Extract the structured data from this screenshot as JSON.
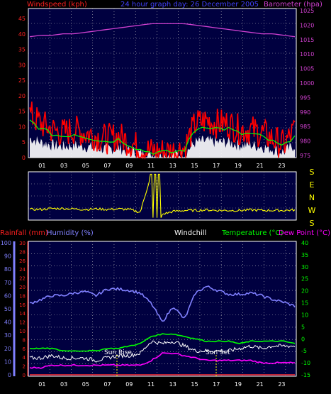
{
  "colors": {
    "background": "#000000",
    "plot_bg": "#000040",
    "grid": "#c0c0c0",
    "windspeed": "#ff0000",
    "gust_avg": "#00ff00",
    "wind_white": "#ffffff",
    "wind_green": "#a0ffa0",
    "barometer": "#d040d0",
    "winddir": "#ffff00",
    "rainfall": "#ff3030",
    "humidity": "#8080ff",
    "windchill": "#ffffff",
    "temperature": "#00ff00",
    "dewpoint": "#ff00ff"
  },
  "top_chart": {
    "title": "24 hour graph day: 26 December 2005",
    "left_label": "Windspeed (kph)",
    "right_label": "Barometer (hpa)",
    "left_ticks": [
      "0",
      "5",
      "10",
      "15",
      "20",
      "25",
      "30",
      "35",
      "40",
      "45"
    ],
    "right_ticks": [
      "975",
      "980",
      "985",
      "990",
      "995",
      "1000",
      "1005",
      "1010",
      "1015",
      "1020",
      "1025"
    ]
  },
  "dir_chart": {
    "compass": [
      "S",
      "E",
      "N",
      "W",
      "S"
    ]
  },
  "bottom_chart": {
    "rain_label": "Rainfall (mm)",
    "humidity_label": "Humidity (%)",
    "windchill_label": "Windchill",
    "temp_label": "Temperature (°C)",
    "dew_label": "Dew Point (°C)",
    "rain_ticks": [
      "0",
      "2",
      "4",
      "6",
      "8",
      "10",
      "12",
      "14",
      "16",
      "18",
      "20",
      "22",
      "24",
      "26",
      "28",
      "30"
    ],
    "humidity_ticks": [
      "0",
      "10",
      "20",
      "30",
      "40",
      "50",
      "60",
      "70",
      "80",
      "90",
      "100"
    ],
    "temp_ticks": [
      "-15",
      "-10",
      "-5",
      "0",
      "5",
      "10",
      "15",
      "20",
      "25",
      "30",
      "35",
      "40"
    ],
    "sunrise_label": "Sun Rise",
    "sunset_label": "Sun Set"
  },
  "x_ticks": [
    "01",
    "03",
    "05",
    "07",
    "09",
    "11",
    "13",
    "15",
    "17",
    "19",
    "21",
    "23"
  ],
  "chart_data": [
    {
      "type": "line",
      "title": "24 hour graph day: 26 December 2005",
      "xlabel": "",
      "ylabel": "Windspeed (kph)",
      "ylim": [
        0,
        45
      ],
      "y2label": "Barometer (hpa)",
      "y2lim": [
        975,
        1025
      ],
      "x": [
        0,
        1,
        2,
        3,
        4,
        5,
        6,
        7,
        8,
        9,
        10,
        11,
        12,
        13,
        14,
        15,
        16,
        17,
        18,
        19,
        20,
        21,
        22,
        23,
        24
      ],
      "series": [
        {
          "name": "Windspeed (kph)",
          "values": [
            14,
            11,
            9,
            8,
            9,
            8,
            7,
            6,
            7,
            5,
            3,
            2,
            2,
            2,
            3,
            11,
            12,
            11,
            11,
            9,
            9,
            8,
            6,
            4,
            9
          ]
        },
        {
          "name": "Barometer (hpa)",
          "values": [
            1016,
            1016.5,
            1016.5,
            1017,
            1017,
            1017.5,
            1018,
            1018.5,
            1019,
            1019.5,
            1020,
            1020.5,
            1020.5,
            1020.5,
            1020.5,
            1020,
            1019.5,
            1019,
            1018.5,
            1018,
            1017.5,
            1017,
            1017,
            1016.5,
            1016
          ]
        }
      ],
      "legend": "none",
      "grid": true
    },
    {
      "type": "line",
      "xlabel": "",
      "ylabel": "",
      "ycategories": [
        "S",
        "E",
        "N",
        "W",
        "S"
      ],
      "x": [
        0,
        1,
        2,
        3,
        4,
        5,
        6,
        7,
        8,
        9,
        10,
        11,
        12,
        13,
        14,
        15,
        16,
        17,
        18,
        19,
        20,
        21,
        22,
        23,
        24
      ],
      "series": [
        {
          "values": [
            0.22,
            0.22,
            0.24,
            0.24,
            0.23,
            0.22,
            0.23,
            0.22,
            0.23,
            0.22,
            0.16,
            0.95,
            0.12,
            0.18,
            0.2,
            0.2,
            0.21,
            0.2,
            0.2,
            0.2,
            0.21,
            0.2,
            0.2,
            0.2,
            0.21
          ]
        }
      ],
      "grid": true
    },
    {
      "type": "line",
      "xlabel": "",
      "ylabel": "",
      "ylim": [
        -15,
        40
      ],
      "y2label": "Humidity (%)",
      "y2lim": [
        0,
        100
      ],
      "y3label": "Rainfall (mm)",
      "y3lim": [
        0,
        30
      ],
      "x": [
        0,
        1,
        2,
        3,
        4,
        5,
        6,
        7,
        8,
        9,
        10,
        11,
        12,
        13,
        14,
        15,
        16,
        17,
        18,
        19,
        20,
        21,
        22,
        23,
        24
      ],
      "series": [
        {
          "name": "Humidity (%)",
          "values": [
            54,
            57,
            60,
            60,
            62,
            63,
            60,
            65,
            65,
            64,
            62,
            54,
            40,
            52,
            42,
            62,
            67,
            64,
            61,
            61,
            62,
            60,
            57,
            55,
            52
          ]
        },
        {
          "name": "Windchill",
          "values": [
            -8,
            -8,
            -7,
            -8,
            -8,
            -8,
            -9,
            -8,
            -7,
            -7,
            -6,
            -1,
            -2,
            -1,
            -3,
            -5,
            -5,
            -5,
            -5,
            -4,
            -3,
            -4,
            -3,
            -3,
            -3
          ]
        },
        {
          "name": "Temperature (°C)",
          "values": [
            -4,
            -4,
            -4,
            -5,
            -5,
            -5,
            -5,
            -4,
            -4,
            -3,
            -2,
            1,
            2,
            2,
            1,
            0,
            -1,
            -1,
            -1,
            -2,
            -1,
            -1,
            -1,
            -1,
            -2
          ]
        },
        {
          "name": "Dew Point (°C)",
          "values": [
            -12,
            -12,
            -11,
            -11,
            -11,
            -11,
            -11,
            -11,
            -11,
            -11,
            -11,
            -9,
            -6,
            -6,
            -7,
            -8,
            -9,
            -9,
            -9,
            -9,
            -9,
            -10,
            -10,
            -10,
            -10
          ]
        },
        {
          "name": "Rainfall (mm)",
          "values": [
            0,
            0,
            0,
            0,
            0,
            0,
            0,
            0,
            0,
            0,
            0,
            0,
            0,
            0,
            0,
            0,
            0,
            0,
            0,
            0,
            0,
            0,
            0,
            0,
            0
          ]
        }
      ],
      "annotations": [
        "Sun Rise",
        "Sun Set"
      ],
      "legend": "top",
      "grid": true
    }
  ]
}
